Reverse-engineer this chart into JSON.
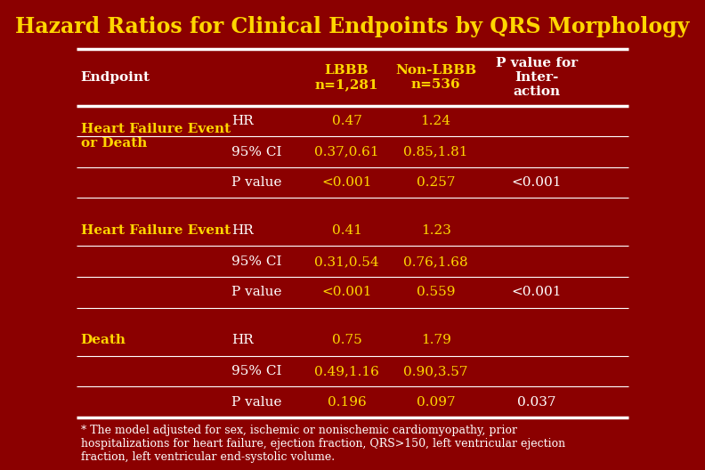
{
  "title": "Hazard Ratios for Clinical Endpoints by QRS Morphology",
  "title_color": "#FFD700",
  "title_fontsize": 17,
  "bg_color": "#8B0000",
  "text_color_white": "#FFFFFF",
  "text_color_yellow": "#FFD700",
  "footnote": "* The model adjusted for sex, ischemic or nonischemic cardiomyopathy, prior\nhospitalizations for heart failure, ejection fraction, QRS>150, left ventricular ejection\nfraction, left ventricular end-systolic volume.",
  "rows": [
    {
      "endpoint": [
        "Heart Failure Event",
        "or Death"
      ],
      "metric": [
        "HR",
        "95% CI",
        "P value"
      ],
      "lbbb": [
        "0.47",
        "0.37,0.61",
        "<0.001"
      ],
      "nonlbbb": [
        "1.24",
        "0.85,1.81",
        "0.257"
      ],
      "pint": [
        "",
        "",
        "<0.001"
      ]
    },
    {
      "endpoint": [
        "Heart Failure Event"
      ],
      "metric": [
        "HR",
        "95% CI",
        "P value"
      ],
      "lbbb": [
        "0.41",
        "0.31,0.54",
        "<0.001"
      ],
      "nonlbbb": [
        "1.23",
        "0.76,1.68",
        "0.559"
      ],
      "pint": [
        "",
        "",
        "<0.001"
      ]
    },
    {
      "endpoint": [
        "Death"
      ],
      "metric": [
        "HR",
        "95% CI",
        "P value"
      ],
      "lbbb": [
        "0.75",
        "0.49,1.16",
        "0.196"
      ],
      "nonlbbb": [
        "1.79",
        "0.90,3.57",
        "0.097"
      ],
      "pint": [
        "",
        "",
        "0.037"
      ]
    }
  ]
}
